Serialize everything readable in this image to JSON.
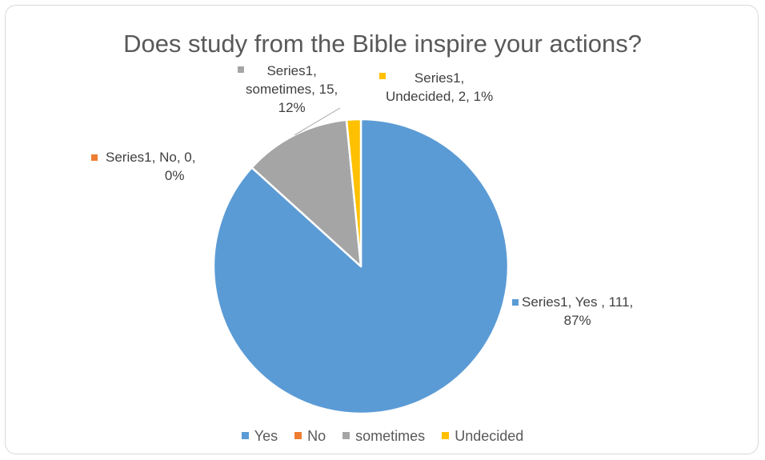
{
  "chart_data": {
    "type": "pie",
    "title": "Does study from the Bible inspire your actions?",
    "series_name": "Series1",
    "categories": [
      "Yes ",
      "No",
      "sometimes",
      "Undecided"
    ],
    "legend_labels": [
      "Yes",
      "No",
      "sometimes",
      "Undecided"
    ],
    "values": [
      111,
      0,
      15,
      2
    ],
    "percent_labels": [
      "87%",
      "0%",
      "12%",
      "1%"
    ],
    "colors": [
      "#5b9bd5",
      "#ed7d31",
      "#a5a5a5",
      "#ffc000"
    ],
    "data_labels": [
      {
        "line1": "Series1, Yes , 111,",
        "line2": "87%"
      },
      {
        "line1": "Series1, No, 0,",
        "line2": "0%"
      },
      {
        "line1": "Series1,",
        "line2": "sometimes, 15,",
        "line3": "12%"
      },
      {
        "line1": "Series1,",
        "line2": "Undecided, 2, 1%"
      }
    ],
    "legend_position": "bottom",
    "start_angle_deg": 0,
    "direction": "clockwise"
  }
}
